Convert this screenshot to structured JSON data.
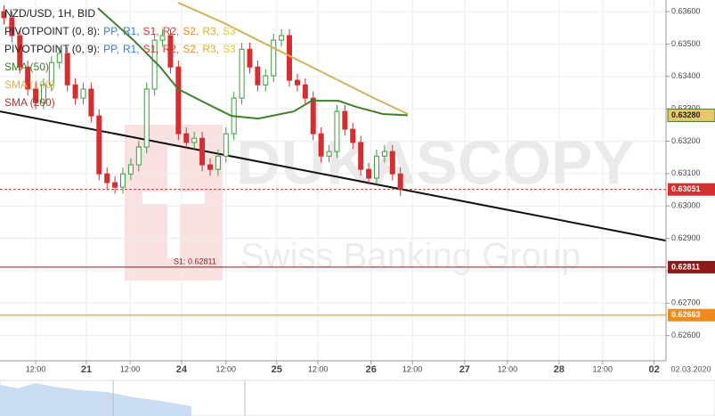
{
  "chart_data": {
    "type": "candlestick",
    "title": "NZD/USD, 1H, BID",
    "pivot_legend": [
      {
        "text": "PIVOTPOINT (0, 8):",
        "items": [
          {
            "text": "PP,",
            "color": "#2f7bd6"
          },
          {
            "text": "R1,",
            "color": "#2f7bd6"
          },
          {
            "text": "S1,",
            "color": "#d23a2e"
          },
          {
            "text": "R2,",
            "color": "#d23a2e"
          },
          {
            "text": "S2,",
            "color": "#ef8a1c"
          },
          {
            "text": "R3,",
            "color": "#d8b21a"
          },
          {
            "text": "S3",
            "color": "#e4cf1a"
          }
        ]
      },
      {
        "text": "PIVOTPOINT (0, 9):",
        "items": [
          {
            "text": "PP,",
            "color": "#2f7bd6"
          },
          {
            "text": "R1,",
            "color": "#2f7bd6"
          },
          {
            "text": "S1,",
            "color": "#d23a2e"
          },
          {
            "text": "R2,",
            "color": "#d23a2e"
          },
          {
            "text": "S2,",
            "color": "#ef8a1c"
          },
          {
            "text": "R3,",
            "color": "#d8b21a"
          },
          {
            "text": "S3",
            "color": "#e4cf1a"
          }
        ]
      }
    ],
    "up_color": "#3d9a3d",
    "down_color": "#d23030",
    "x": [
      0.5,
      1.5,
      2.5,
      3.5,
      4.5,
      5.5,
      6.5,
      7.5,
      8.5,
      9.5,
      10.5,
      11.5,
      12.5,
      13.5,
      14.5,
      15.5,
      16.5,
      17.5,
      18.5,
      19.5,
      20.5,
      21.5,
      22.5,
      23.5,
      24.5,
      25.5,
      26.5,
      27.5,
      28.5,
      29.5,
      30.5,
      31.5,
      32.5,
      33.5,
      34.5,
      35.5,
      36.5,
      37.5,
      38.5,
      39.5,
      40.5,
      41.5,
      42.5,
      43.5,
      44.5,
      45.5,
      46.5,
      47.5,
      48.5,
      49.5,
      50.5
    ],
    "open": [
      0.636,
      0.63581,
      0.63526,
      0.63429,
      0.63361,
      0.63319,
      0.63374,
      0.63443,
      0.63471,
      0.63374,
      0.63333,
      0.63361,
      0.63278,
      0.63099,
      0.63072,
      0.63058,
      0.63099,
      0.63127,
      0.63182,
      0.63361,
      0.63512,
      0.63526,
      0.63429,
      0.63223,
      0.63196,
      0.63209,
      0.63127,
      0.63113,
      0.63154,
      0.63223,
      0.63333,
      0.63484,
      0.63429,
      0.63374,
      0.63402,
      0.63512,
      0.63526,
      0.63388,
      0.63374,
      0.63333,
      0.63223,
      0.63154,
      0.63168,
      0.63292,
      0.63237,
      0.63196,
      0.63113,
      0.63086,
      0.63154,
      0.63168,
      0.63099
    ],
    "high": [
      0.6362,
      0.63601,
      0.63546,
      0.63449,
      0.63381,
      0.63394,
      0.63463,
      0.63491,
      0.63491,
      0.63394,
      0.63381,
      0.63381,
      0.63298,
      0.63119,
      0.63092,
      0.63119,
      0.63147,
      0.63202,
      0.63381,
      0.63532,
      0.63546,
      0.63546,
      0.63449,
      0.63243,
      0.63229,
      0.63229,
      0.63147,
      0.63174,
      0.63243,
      0.63353,
      0.63504,
      0.63504,
      0.63449,
      0.63422,
      0.63532,
      0.63546,
      0.63546,
      0.63408,
      0.63394,
      0.63353,
      0.63243,
      0.63188,
      0.63312,
      0.63312,
      0.63257,
      0.63216,
      0.63133,
      0.63174,
      0.63188,
      0.63188,
      0.63119
    ],
    "low": [
      0.63561,
      0.63506,
      0.63409,
      0.63341,
      0.63299,
      0.63299,
      0.63354,
      0.63423,
      0.63354,
      0.63313,
      0.63313,
      0.63258,
      0.63079,
      0.63052,
      0.63038,
      0.63038,
      0.63079,
      0.63107,
      0.63162,
      0.63341,
      0.63492,
      0.63409,
      0.63203,
      0.63176,
      0.63176,
      0.63107,
      0.63093,
      0.63093,
      0.63134,
      0.63203,
      0.63313,
      0.63409,
      0.63354,
      0.63354,
      0.63382,
      0.63492,
      0.63368,
      0.63354,
      0.63313,
      0.63203,
      0.63134,
      0.63134,
      0.63148,
      0.63217,
      0.63176,
      0.63093,
      0.63066,
      0.63066,
      0.63134,
      0.63079,
      0.63031
    ],
    "close": [
      0.63581,
      0.63526,
      0.63429,
      0.63361,
      0.63319,
      0.63374,
      0.63443,
      0.63471,
      0.63374,
      0.63333,
      0.63361,
      0.63278,
      0.63099,
      0.63072,
      0.63058,
      0.63099,
      0.63127,
      0.63182,
      0.63361,
      0.63512,
      0.63526,
      0.63429,
      0.63223,
      0.63196,
      0.63209,
      0.63127,
      0.63113,
      0.63154,
      0.63223,
      0.63333,
      0.63484,
      0.63429,
      0.63374,
      0.63402,
      0.63512,
      0.63526,
      0.63388,
      0.63374,
      0.63333,
      0.63223,
      0.63154,
      0.63168,
      0.63292,
      0.63237,
      0.63196,
      0.63113,
      0.63086,
      0.63154,
      0.63168,
      0.63099,
      0.63051
    ],
    "series": [
      {
        "name": "SMA (50)",
        "color": "#3f7f2a",
        "x": [
          12.35,
          16.84,
          20.21,
          22.46,
          25.83,
          29.2,
          32.57,
          37.06,
          39.3,
          42.67,
          44.92,
          48.29,
          51.43
        ],
        "values": [
          0.63611,
          0.63512,
          0.63429,
          0.63361,
          0.63319,
          0.63278,
          0.6327,
          0.63292,
          0.63325,
          0.63325,
          0.63306,
          0.63284,
          0.6328
        ],
        "last_label": "0.63280"
      },
      {
        "name": "SMA (100)",
        "color": "#d4b25a",
        "x": [
          22.46,
          28.07,
          33.69,
          38.18,
          42.67,
          47.16,
          51.43
        ],
        "values": [
          0.63628,
          0.63567,
          0.63498,
          0.63443,
          0.63388,
          0.63333,
          0.63284
        ]
      }
    ],
    "extra_legend": [
      {
        "name": "SMA (200)",
        "color": "#a83a30"
      }
    ],
    "trendline": {
      "x": [
        0,
        84
      ],
      "values": [
        0.63292,
        0.62893
      ],
      "color": "#111111"
    },
    "levels": [
      {
        "value": 0.63051,
        "label": "0.63051",
        "color": "#d32f2f",
        "dashed": true
      },
      {
        "value": 0.62811,
        "label": "0.62811",
        "note": "S1: 0.62811",
        "color": "#8b1a1a",
        "dashed": false
      },
      {
        "value": 0.62663,
        "label": "0.62663",
        "color": "#ef8a1c",
        "dashed": false
      }
    ],
    "xlim": [
      0,
      84
    ],
    "ylim": [
      0.62522,
      0.63636
    ],
    "xticks": [
      {
        "value": 4.5,
        "label": "12:00"
      },
      {
        "value": 10.9,
        "label": "21"
      },
      {
        "value": 16.4,
        "label": "12:00"
      },
      {
        "value": 22.9,
        "label": "24"
      },
      {
        "value": 28.5,
        "label": "12:00"
      },
      {
        "value": 34.9,
        "label": "25"
      },
      {
        "value": 40.1,
        "label": "12:00"
      },
      {
        "value": 46.8,
        "label": "26"
      },
      {
        "value": 52,
        "label": "12:00"
      },
      {
        "value": 58.6,
        "label": "27"
      },
      {
        "value": 64,
        "label": "12:00"
      },
      {
        "value": 70.5,
        "label": "28"
      },
      {
        "value": 76,
        "label": "12:00"
      },
      {
        "value": 82.5,
        "label": "02"
      }
    ],
    "date_label": "02.03.2020",
    "yticks": [
      {
        "value": 0.636,
        "label": "0.63600"
      },
      {
        "value": 0.635,
        "label": "0.63500"
      },
      {
        "value": 0.634,
        "label": "0.63400"
      },
      {
        "value": 0.633,
        "label": "0.63300"
      },
      {
        "value": 0.632,
        "label": "0.63200"
      },
      {
        "value": 0.631,
        "label": "0.63100"
      },
      {
        "value": 0.63,
        "label": "0.63000"
      },
      {
        "value": 0.629,
        "label": "0.62900"
      },
      {
        "value": 0.628,
        "label": "0.62800"
      },
      {
        "value": 0.627,
        "label": "0.62700"
      },
      {
        "value": 0.626,
        "label": "0.62600"
      }
    ],
    "grid": true,
    "watermark": {
      "brand": "DUKASCOPY",
      "tagline": "Swiss Banking Group"
    }
  }
}
